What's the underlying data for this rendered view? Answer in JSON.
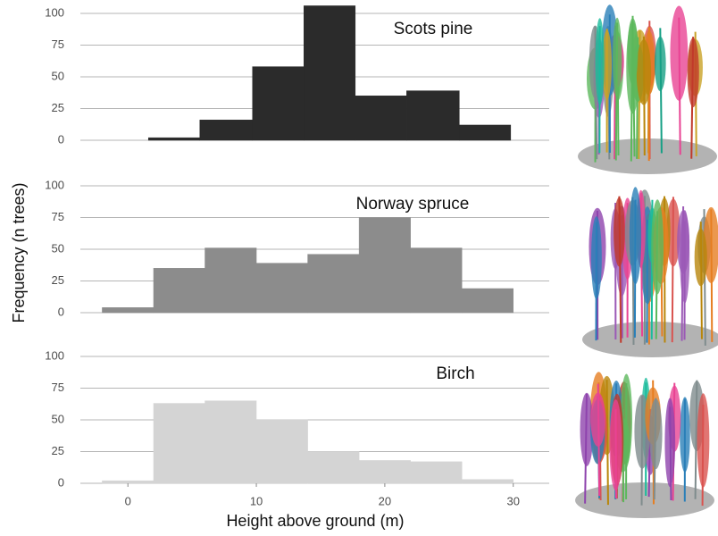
{
  "y_label": "Frequency (n trees)",
  "x_label": "Height above ground (m)",
  "chart_data": [
    {
      "type": "histogram",
      "title": "Scots pine",
      "color": "#2b2b2b",
      "bins": [
        1.6,
        5.6,
        9.7,
        13.7,
        17.7,
        21.7,
        25.8,
        29.8
      ],
      "values": [
        2,
        16,
        58,
        106,
        35,
        39,
        12
      ],
      "xlim": [
        -3.7,
        32.8
      ],
      "ylim": [
        0,
        100
      ],
      "yticks": [
        0,
        25,
        50,
        75,
        100
      ],
      "grid": true
    },
    {
      "type": "histogram",
      "title": "Norway spruce",
      "color": "#8c8c8c",
      "bins": [
        -2,
        2,
        6,
        10,
        14,
        18,
        22,
        26,
        30
      ],
      "values": [
        4,
        35,
        51,
        39,
        46,
        75,
        51,
        19
      ],
      "xlim": [
        -3.7,
        32.8
      ],
      "ylim": [
        0,
        100
      ],
      "yticks": [
        0,
        25,
        50,
        75,
        100
      ],
      "grid": true
    },
    {
      "type": "histogram",
      "title": "Birch",
      "color": "#d4d4d4",
      "bins": [
        -2,
        2,
        6,
        10,
        14,
        18,
        22,
        26,
        30
      ],
      "values": [
        2,
        63,
        65,
        50,
        25,
        18,
        17,
        3
      ],
      "xlim": [
        -3.7,
        32.8
      ],
      "ylim": [
        0,
        100
      ],
      "yticks": [
        0,
        25,
        50,
        75,
        100
      ],
      "xticks": [
        0,
        10,
        20,
        30
      ],
      "grid": true
    }
  ]
}
